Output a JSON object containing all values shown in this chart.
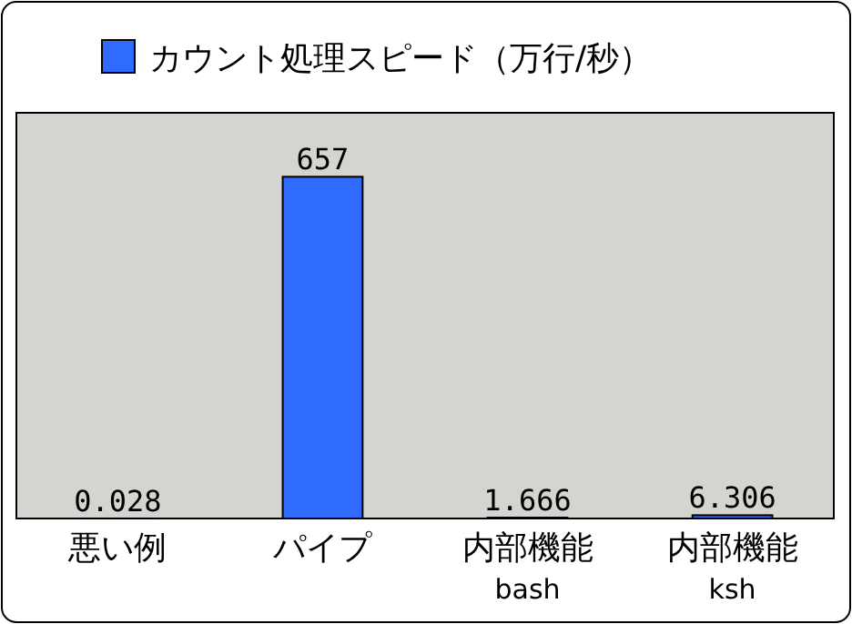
{
  "chart_data": {
    "type": "bar",
    "categories": [
      "悪い例",
      "パイプ",
      "内部機能\nbash",
      "内部機能\nksh"
    ],
    "series": [
      {
        "name": "カウント処理スピード（万行/秒）",
        "color": "#2f6bff",
        "values": [
          0.028,
          657,
          1.666,
          6.306
        ]
      }
    ],
    "ylim": [
      0,
      780
    ],
    "data_labels": true,
    "legend": "top"
  }
}
